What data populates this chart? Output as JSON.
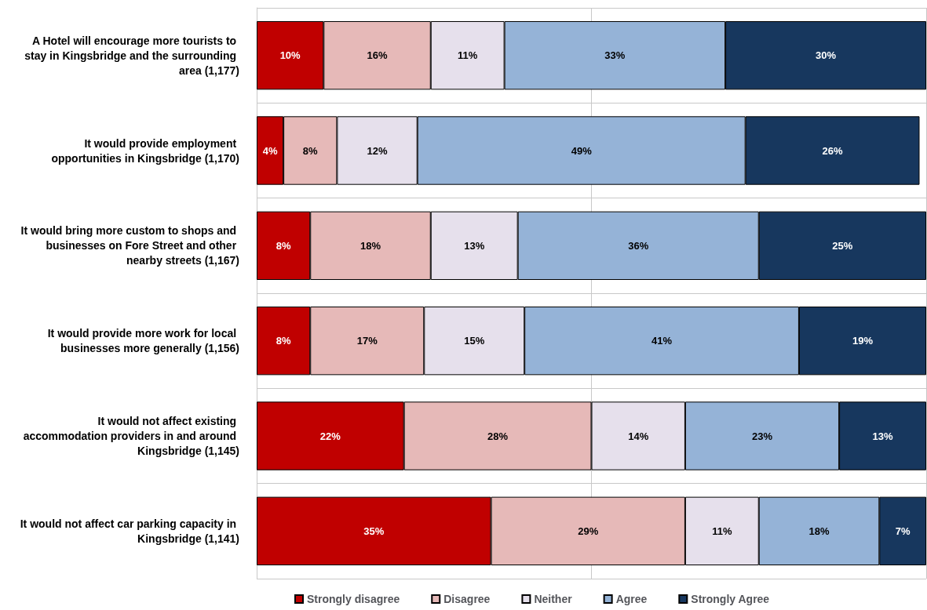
{
  "chart_data": {
    "type": "bar",
    "orientation": "horizontal",
    "stacked": true,
    "grid": true,
    "legend": "bottom",
    "tick_labels": "y",
    "categories": [
      "A Hotel will encourage more tourists to stay in Kingsbridge and the surrounding area (1,177)",
      "It would provide employment opportunities in Kingsbridge (1,170)",
      "It would bring more custom to shops and businesses on Fore Street and other nearby streets (1,167)",
      "It would provide more work for local businesses more generally (1,156)",
      "It would not affect existing accommodation providers in and around Kingsbridge (1,145)",
      "It would not affect car parking capacity in Kingsbridge (1,141)"
    ],
    "series": [
      {
        "name": "Strongly disagree",
        "color": "#c00000",
        "values": [
          10,
          4,
          8,
          8,
          22,
          35
        ],
        "value_labels": [
          "10%",
          "4%",
          "8%",
          "8%",
          "22%",
          "35%"
        ]
      },
      {
        "name": "Disagree",
        "color": "#e6b9b8",
        "values": [
          16,
          8,
          18,
          17,
          28,
          29
        ],
        "value_labels": [
          "16%",
          "8%",
          "18%",
          "17%",
          "28%",
          "29%"
        ]
      },
      {
        "name": "Neither",
        "color": "#e6e0ec",
        "values": [
          11,
          12,
          13,
          15,
          14,
          11
        ],
        "value_labels": [
          "11%",
          "12%",
          "13%",
          "15%",
          "14%",
          "11%"
        ]
      },
      {
        "name": "Agree",
        "color": "#95b3d7",
        "values": [
          33,
          49,
          36,
          41,
          23,
          18
        ],
        "value_labels": [
          "33%",
          "49%",
          "36%",
          "41%",
          "23%",
          "18%"
        ]
      },
      {
        "name": "Strongly Agree",
        "color": "#17375e",
        "values": [
          30,
          26,
          25,
          19,
          13,
          7
        ],
        "value_labels": [
          "30%",
          "26%",
          "25%",
          "19%",
          "13%",
          "7%"
        ]
      }
    ]
  }
}
